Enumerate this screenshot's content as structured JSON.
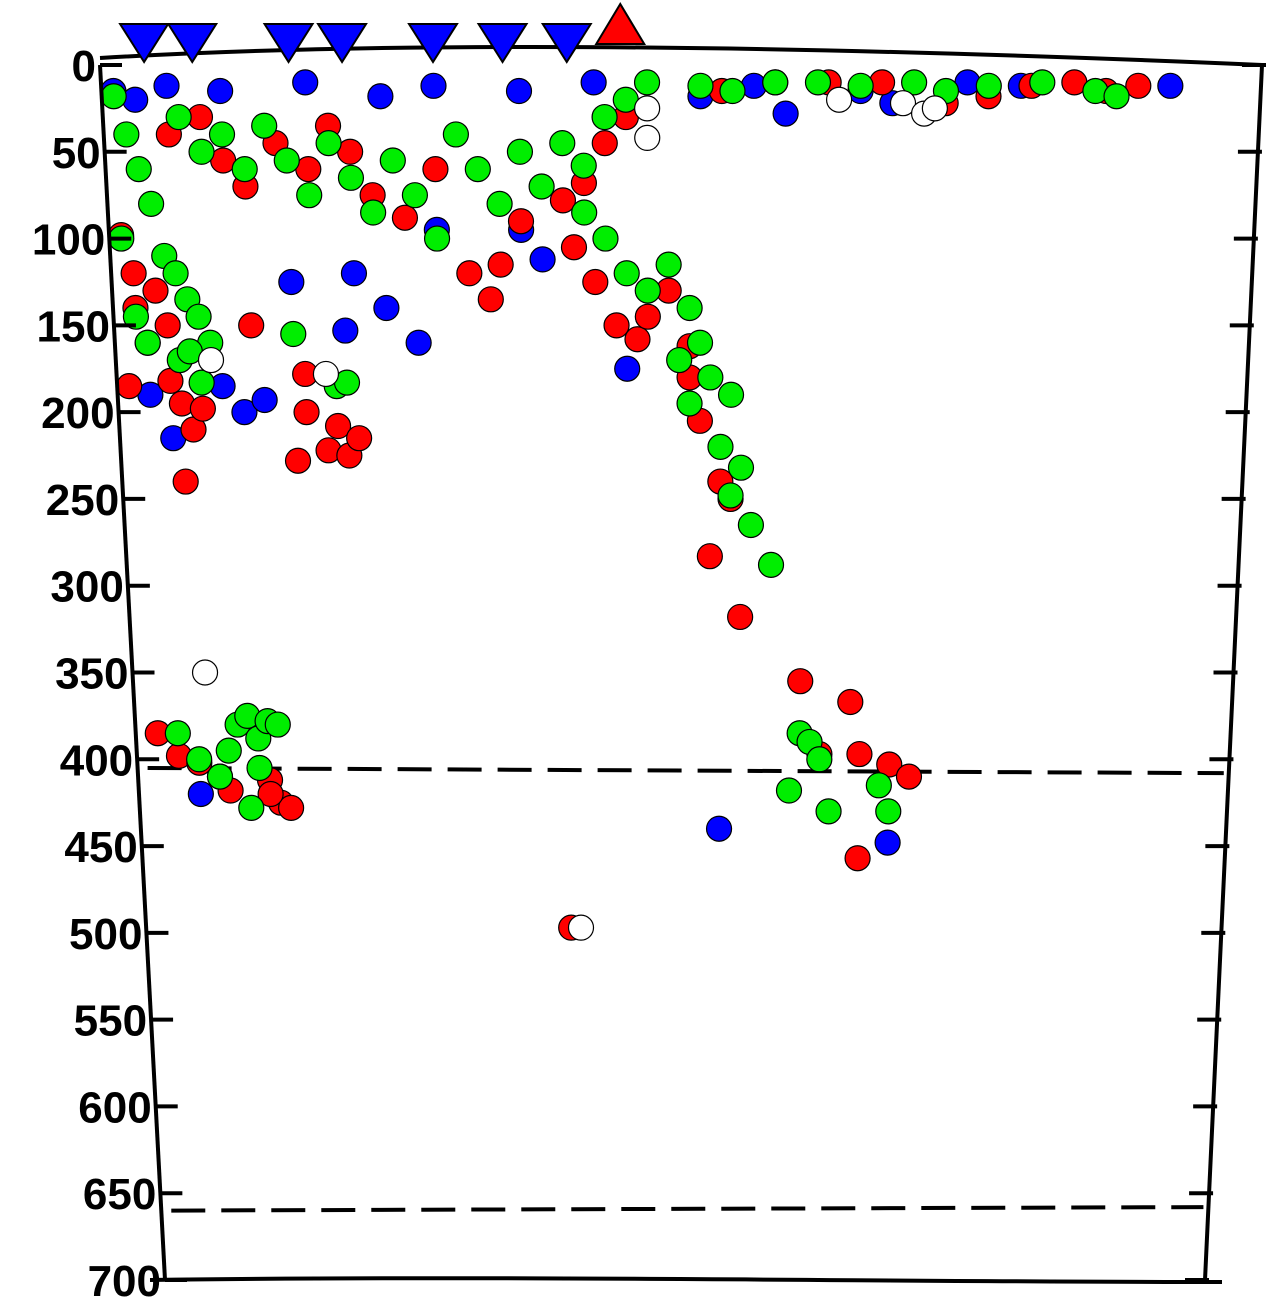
{
  "chart_data": {
    "type": "scatter",
    "title": "",
    "xlabel": "",
    "ylabel": "",
    "ylim": [
      0,
      700
    ],
    "y_inverted": true,
    "y_ticks": [
      0,
      50,
      100,
      150,
      200,
      250,
      300,
      350,
      400,
      450,
      500,
      550,
      600,
      650,
      700
    ],
    "y_tick_labels": [
      "0",
      "50",
      "100",
      "150",
      "200",
      "250",
      "300",
      "350",
      "400",
      "450",
      "500",
      "550",
      "600",
      "650",
      "700"
    ],
    "x_ticks_labeled": false,
    "grid": false,
    "legend": "none",
    "reference_lines": [
      {
        "style": "dashed",
        "y": [
          405,
          408
        ]
      },
      {
        "style": "dashed",
        "y": [
          660,
          658
        ]
      }
    ],
    "stations": [
      {
        "marker": "triangle-down",
        "color": "#0000ff",
        "x": 0.03
      },
      {
        "marker": "triangle-down",
        "color": "#0000ff",
        "x": 0.075
      },
      {
        "marker": "triangle-down",
        "color": "#0000ff",
        "x": 0.165
      },
      {
        "marker": "triangle-down",
        "color": "#0000ff",
        "x": 0.215
      },
      {
        "marker": "triangle-down",
        "color": "#0000ff",
        "x": 0.3
      },
      {
        "marker": "triangle-down",
        "color": "#0000ff",
        "x": 0.365
      },
      {
        "marker": "triangle-down",
        "color": "#0000ff",
        "x": 0.425
      },
      {
        "marker": "triangle-up",
        "color": "#ff0000",
        "x": 0.475
      }
    ],
    "series": [
      {
        "color": "#0000ff",
        "points": [
          [
            0.0,
            15
          ],
          [
            0.02,
            20
          ],
          [
            0.05,
            12
          ],
          [
            0.1,
            15
          ],
          [
            0.18,
            10
          ],
          [
            0.25,
            18
          ],
          [
            0.3,
            12
          ],
          [
            0.38,
            15
          ],
          [
            0.45,
            10
          ],
          [
            0.55,
            18
          ],
          [
            0.6,
            12
          ],
          [
            0.63,
            28
          ],
          [
            0.7,
            15
          ],
          [
            0.73,
            22
          ],
          [
            0.8,
            10
          ],
          [
            0.85,
            12
          ],
          [
            0.99,
            12
          ],
          [
            0.02,
            190
          ],
          [
            0.04,
            215
          ],
          [
            0.09,
            185
          ],
          [
            0.11,
            200
          ],
          [
            0.13,
            193
          ],
          [
            0.16,
            125
          ],
          [
            0.21,
            153
          ],
          [
            0.22,
            120
          ],
          [
            0.25,
            140
          ],
          [
            0.28,
            160
          ],
          [
            0.3,
            95
          ],
          [
            0.38,
            95
          ],
          [
            0.4,
            112
          ],
          [
            0.48,
            175
          ],
          [
            0.05,
            420
          ],
          [
            0.57,
            440
          ],
          [
            0.74,
            448
          ]
        ]
      },
      {
        "color": "#ff0000",
        "points": [
          [
            0.0,
            98
          ],
          [
            0.01,
            120
          ],
          [
            0.01,
            140
          ],
          [
            0.02,
            160
          ],
          [
            0.03,
            130
          ],
          [
            0.04,
            150
          ],
          [
            0.0,
            185
          ],
          [
            0.04,
            182
          ],
          [
            0.05,
            195
          ],
          [
            0.06,
            210
          ],
          [
            0.07,
            198
          ],
          [
            0.05,
            240
          ],
          [
            0.12,
            150
          ],
          [
            0.17,
            178
          ],
          [
            0.17,
            200
          ],
          [
            0.16,
            228
          ],
          [
            0.19,
            222
          ],
          [
            0.2,
            208
          ],
          [
            0.21,
            225
          ],
          [
            0.22,
            215
          ],
          [
            0.05,
            40
          ],
          [
            0.08,
            30
          ],
          [
            0.1,
            55
          ],
          [
            0.12,
            70
          ],
          [
            0.15,
            45
          ],
          [
            0.18,
            60
          ],
          [
            0.2,
            35
          ],
          [
            0.22,
            50
          ],
          [
            0.24,
            75
          ],
          [
            0.27,
            88
          ],
          [
            0.3,
            60
          ],
          [
            0.33,
            120
          ],
          [
            0.35,
            135
          ],
          [
            0.36,
            115
          ],
          [
            0.38,
            90
          ],
          [
            0.42,
            78
          ],
          [
            0.44,
            68
          ],
          [
            0.46,
            45
          ],
          [
            0.48,
            30
          ],
          [
            0.43,
            105
          ],
          [
            0.45,
            125
          ],
          [
            0.47,
            150
          ],
          [
            0.49,
            158
          ],
          [
            0.5,
            145
          ],
          [
            0.52,
            130
          ],
          [
            0.54,
            180
          ],
          [
            0.54,
            162
          ],
          [
            0.55,
            205
          ],
          [
            0.57,
            240
          ],
          [
            0.58,
            250
          ],
          [
            0.56,
            283
          ],
          [
            0.59,
            318
          ],
          [
            0.57,
            15
          ],
          [
            0.62,
            10
          ],
          [
            0.67,
            10
          ],
          [
            0.72,
            10
          ],
          [
            0.78,
            22
          ],
          [
            0.82,
            18
          ],
          [
            0.86,
            12
          ],
          [
            0.9,
            10
          ],
          [
            0.93,
            15
          ],
          [
            0.96,
            12
          ],
          [
            0.01,
            385
          ],
          [
            0.03,
            398
          ],
          [
            0.05,
            402
          ],
          [
            0.07,
            410
          ],
          [
            0.08,
            418
          ],
          [
            0.12,
            412
          ],
          [
            0.13,
            425
          ],
          [
            0.14,
            428
          ],
          [
            0.12,
            420
          ],
          [
            0.65,
            355
          ],
          [
            0.67,
            397
          ],
          [
            0.7,
            367
          ],
          [
            0.71,
            397
          ],
          [
            0.74,
            403
          ],
          [
            0.76,
            410
          ],
          [
            0.71,
            457
          ],
          [
            0.42,
            497
          ]
        ]
      },
      {
        "color": "#00ee00",
        "points": [
          [
            0.0,
            18
          ],
          [
            0.01,
            40
          ],
          [
            0.02,
            60
          ],
          [
            0.03,
            80
          ],
          [
            0.0,
            100
          ],
          [
            0.04,
            110
          ],
          [
            0.05,
            120
          ],
          [
            0.06,
            135
          ],
          [
            0.07,
            145
          ],
          [
            0.08,
            160
          ],
          [
            0.01,
            145
          ],
          [
            0.02,
            160
          ],
          [
            0.05,
            170
          ],
          [
            0.06,
            165
          ],
          [
            0.07,
            183
          ],
          [
            0.16,
            155
          ],
          [
            0.2,
            185
          ],
          [
            0.21,
            183
          ],
          [
            0.06,
            30
          ],
          [
            0.08,
            50
          ],
          [
            0.1,
            40
          ],
          [
            0.12,
            60
          ],
          [
            0.14,
            35
          ],
          [
            0.16,
            55
          ],
          [
            0.18,
            75
          ],
          [
            0.2,
            45
          ],
          [
            0.22,
            65
          ],
          [
            0.24,
            85
          ],
          [
            0.26,
            55
          ],
          [
            0.28,
            75
          ],
          [
            0.3,
            100
          ],
          [
            0.32,
            40
          ],
          [
            0.34,
            60
          ],
          [
            0.36,
            80
          ],
          [
            0.38,
            50
          ],
          [
            0.4,
            70
          ],
          [
            0.42,
            45
          ],
          [
            0.44,
            58
          ],
          [
            0.46,
            30
          ],
          [
            0.48,
            20
          ],
          [
            0.44,
            85
          ],
          [
            0.46,
            100
          ],
          [
            0.48,
            120
          ],
          [
            0.5,
            130
          ],
          [
            0.52,
            115
          ],
          [
            0.54,
            140
          ],
          [
            0.55,
            160
          ],
          [
            0.53,
            170
          ],
          [
            0.56,
            180
          ],
          [
            0.54,
            195
          ],
          [
            0.58,
            190
          ],
          [
            0.57,
            220
          ],
          [
            0.59,
            232
          ],
          [
            0.58,
            248
          ],
          [
            0.6,
            265
          ],
          [
            0.62,
            288
          ],
          [
            0.5,
            10
          ],
          [
            0.55,
            12
          ],
          [
            0.58,
            15
          ],
          [
            0.62,
            10
          ],
          [
            0.66,
            10
          ],
          [
            0.7,
            12
          ],
          [
            0.75,
            10
          ],
          [
            0.78,
            15
          ],
          [
            0.82,
            12
          ],
          [
            0.87,
            10
          ],
          [
            0.92,
            15
          ],
          [
            0.94,
            18
          ],
          [
            0.03,
            385
          ],
          [
            0.05,
            400
          ],
          [
            0.07,
            410
          ],
          [
            0.08,
            395
          ],
          [
            0.09,
            380
          ],
          [
            0.1,
            375
          ],
          [
            0.11,
            388
          ],
          [
            0.11,
            405
          ],
          [
            0.12,
            378
          ],
          [
            0.13,
            380
          ],
          [
            0.1,
            428
          ],
          [
            0.65,
            385
          ],
          [
            0.66,
            390
          ],
          [
            0.67,
            400
          ],
          [
            0.64,
            418
          ],
          [
            0.68,
            430
          ],
          [
            0.73,
            415
          ],
          [
            0.74,
            430
          ]
        ]
      },
      {
        "color": "#ffffff",
        "points": [
          [
            0.06,
            350
          ],
          [
            0.19,
            178
          ],
          [
            0.08,
            170
          ],
          [
            0.5,
            25
          ],
          [
            0.5,
            42
          ],
          [
            0.68,
            20
          ],
          [
            0.74,
            22
          ],
          [
            0.76,
            28
          ],
          [
            0.77,
            25
          ],
          [
            0.43,
            497
          ]
        ]
      }
    ]
  }
}
